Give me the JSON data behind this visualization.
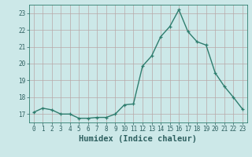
{
  "xlabel": "Humidex (Indice chaleur)",
  "ylabel": "",
  "x_values": [
    0,
    1,
    2,
    3,
    4,
    5,
    6,
    7,
    8,
    9,
    10,
    11,
    12,
    13,
    14,
    15,
    16,
    17,
    18,
    19,
    20,
    21,
    22,
    23
  ],
  "y_values": [
    17.1,
    17.35,
    17.25,
    17.0,
    17.0,
    16.75,
    16.75,
    16.8,
    16.8,
    17.0,
    17.55,
    17.6,
    19.85,
    20.45,
    21.6,
    22.2,
    23.2,
    21.9,
    21.3,
    21.1,
    19.45,
    18.65,
    18.0,
    17.3
  ],
  "line_color": "#2e7d6e",
  "marker_color": "#2e7d6e",
  "bg_color": "#cce8e8",
  "grid_color": "#b8a8a8",
  "axis_color": "#2e7d6e",
  "text_color": "#2e6060",
  "ylim_min": 16.5,
  "ylim_max": 23.5,
  "xlim_min": -0.5,
  "xlim_max": 23.5,
  "yticks": [
    17,
    18,
    19,
    20,
    21,
    22,
    23
  ],
  "xticks": [
    0,
    1,
    2,
    3,
    4,
    5,
    6,
    7,
    8,
    9,
    10,
    11,
    12,
    13,
    14,
    15,
    16,
    17,
    18,
    19,
    20,
    21,
    22,
    23
  ],
  "tick_fontsize": 5.5,
  "xlabel_fontsize": 7.5,
  "marker_size": 2.5,
  "line_width": 1.0
}
